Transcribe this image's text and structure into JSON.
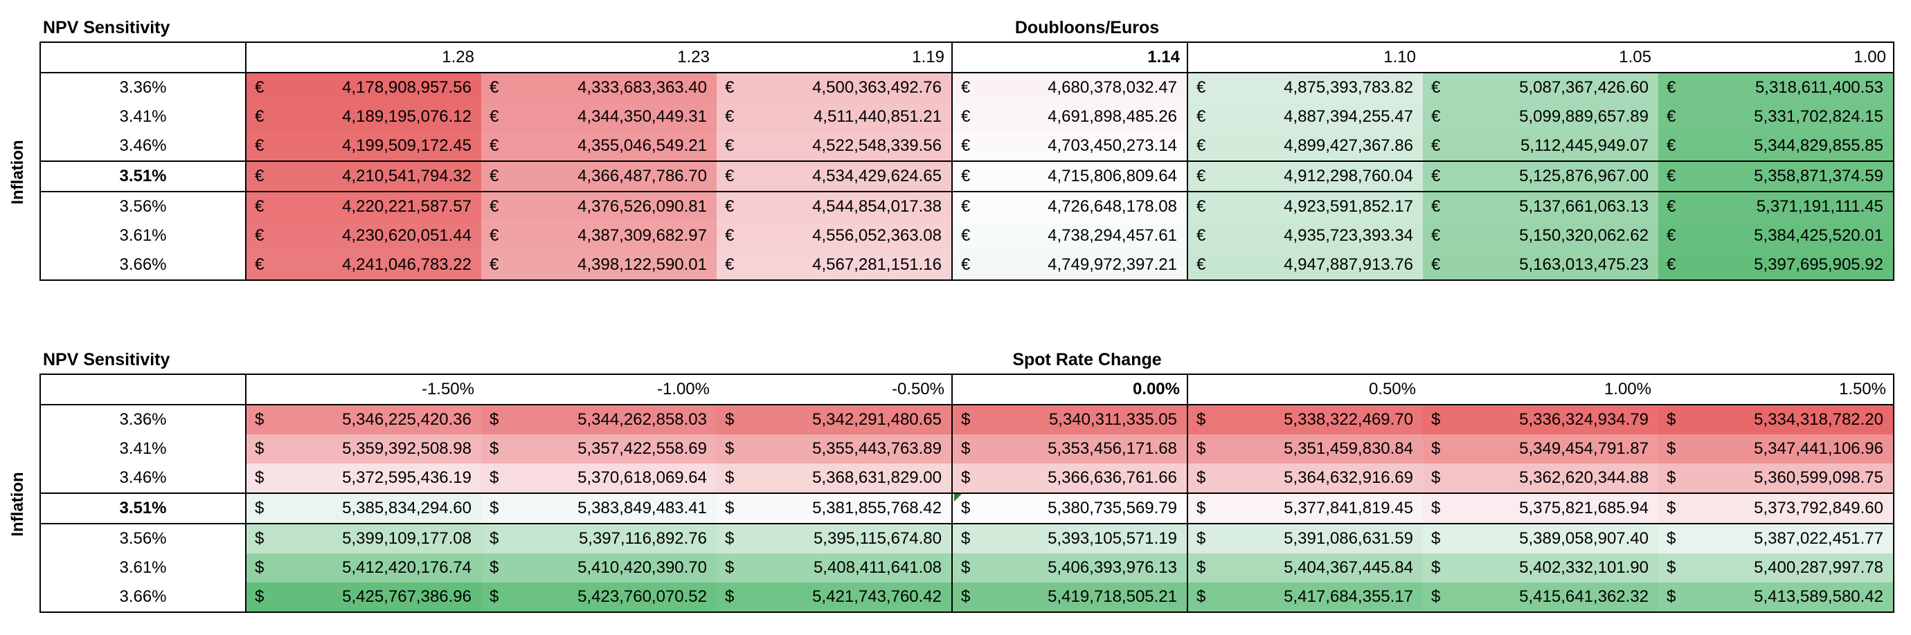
{
  "tables": [
    {
      "title": "NPV Sensitivity",
      "column_axis_label": "Doubloons/Euros",
      "row_axis_label": "Inflation",
      "currency_symbol": "€",
      "base_column_index": 3,
      "base_row_index": 3,
      "columns": [
        "1.28",
        "1.23",
        "1.19",
        "1.14",
        "1.10",
        "1.05",
        "1.00"
      ],
      "rows": [
        {
          "label": "3.36%",
          "values": [
            "4,178,908,957.56",
            "4,333,683,363.40",
            "4,500,363,492.76",
            "4,680,378,032.47",
            "4,875,393,783.82",
            "5,087,367,426.60",
            "5,318,611,400.53"
          ]
        },
        {
          "label": "3.41%",
          "values": [
            "4,189,195,076.12",
            "4,344,350,449.31",
            "4,511,440,851.21",
            "4,691,898,485.26",
            "4,887,394,255.47",
            "5,099,889,657.89",
            "5,331,702,824.15"
          ]
        },
        {
          "label": "3.46%",
          "values": [
            "4,199,509,172.45",
            "4,355,046,549.21",
            "4,522,548,339.56",
            "4,703,450,273.14",
            "4,899,427,367.86",
            "5,112,445,949.07",
            "5,344,829,855.85"
          ]
        },
        {
          "label": "3.51%",
          "values": [
            "4,210,541,794.32",
            "4,366,487,786.70",
            "4,534,429,624.65",
            "4,715,806,809.64",
            "4,912,298,760.04",
            "5,125,876,967.00",
            "5,358,871,374.59"
          ]
        },
        {
          "label": "3.56%",
          "values": [
            "4,220,221,587.57",
            "4,376,526,090.81",
            "4,544,854,017.38",
            "4,726,648,178.08",
            "4,923,591,852.17",
            "5,137,661,063.13",
            "5,371,191,111.45"
          ]
        },
        {
          "label": "3.61%",
          "values": [
            "4,230,620,051.44",
            "4,387,309,682.97",
            "4,556,052,363.08",
            "4,738,294,457.61",
            "4,935,723,393.34",
            "5,150,320,062.62",
            "5,384,425,520.01"
          ]
        },
        {
          "label": "3.66%",
          "values": [
            "4,241,046,783.22",
            "4,398,122,590.01",
            "4,567,281,151.16",
            "4,749,972,397.21",
            "4,947,887,913.76",
            "5,163,013,475.23",
            "5,397,695,905.92"
          ]
        }
      ]
    },
    {
      "title": "NPV Sensitivity",
      "column_axis_label": "Spot Rate Change",
      "row_axis_label": "Inflation",
      "currency_symbol": "$",
      "base_column_index": 3,
      "base_row_index": 3,
      "columns": [
        "-1.50%",
        "-1.00%",
        "-0.50%",
        "0.00%",
        "0.50%",
        "1.00%",
        "1.50%"
      ],
      "rows": [
        {
          "label": "3.36%",
          "values": [
            "5,346,225,420.36",
            "5,344,262,858.03",
            "5,342,291,480.65",
            "5,340,311,335.05",
            "5,338,322,469.70",
            "5,336,324,934.79",
            "5,334,318,782.20"
          ]
        },
        {
          "label": "3.41%",
          "values": [
            "5,359,392,508.98",
            "5,357,422,558.69",
            "5,355,443,763.89",
            "5,353,456,171.68",
            "5,351,459,830.84",
            "5,349,454,791.87",
            "5,347,441,106.96"
          ]
        },
        {
          "label": "3.46%",
          "values": [
            "5,372,595,436.19",
            "5,370,618,069.64",
            "5,368,631,829.00",
            "5,366,636,761.66",
            "5,364,632,916.69",
            "5,362,620,344.88",
            "5,360,599,098.75"
          ]
        },
        {
          "label": "3.51%",
          "values": [
            "5,385,834,294.60",
            "5,383,849,483.41",
            "5,381,855,768.42",
            "5,380,735,569.79",
            "5,377,841,819.45",
            "5,375,821,685.94",
            "5,373,792,849.60"
          ]
        },
        {
          "label": "3.56%",
          "values": [
            "5,399,109,177.08",
            "5,397,116,892.76",
            "5,395,115,674.80",
            "5,393,105,571.19",
            "5,391,086,631.59",
            "5,389,058,907.40",
            "5,387,022,451.77"
          ]
        },
        {
          "label": "3.61%",
          "values": [
            "5,412,420,176.74",
            "5,410,420,390.70",
            "5,408,411,641.08",
            "5,406,393,976.13",
            "5,404,367,445.84",
            "5,402,332,101.90",
            "5,400,287,997.78"
          ]
        },
        {
          "label": "3.66%",
          "values": [
            "5,425,767,386.96",
            "5,423,760,070.52",
            "5,421,743,760.42",
            "5,419,718,505.21",
            "5,417,684,355.17",
            "5,415,641,362.32",
            "5,413,589,580.42"
          ]
        }
      ]
    }
  ],
  "colors": {
    "low": "#e8696b",
    "mid": "#fcfcff",
    "high": "#63be7b",
    "comment_marker": "#2e7d32"
  }
}
